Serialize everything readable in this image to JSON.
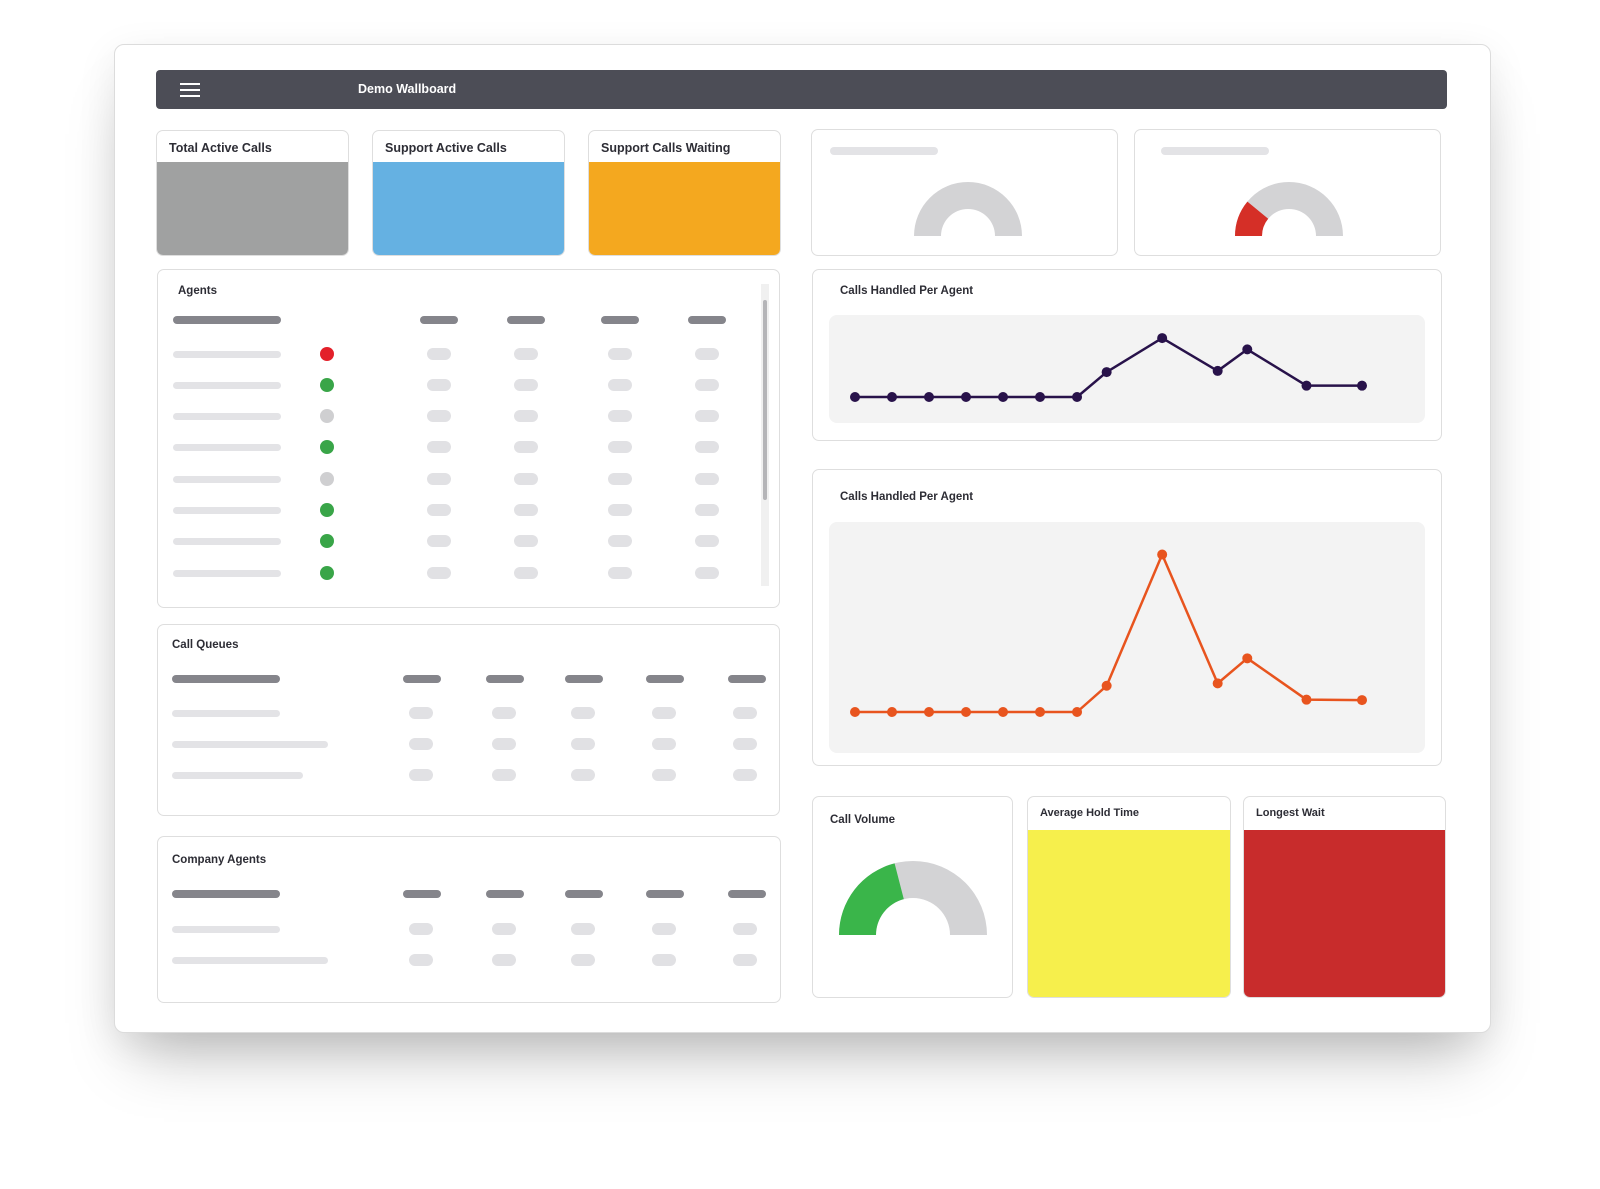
{
  "header": {
    "title": "Demo Wallboard",
    "menu_icon": "hamburger-icon"
  },
  "stats": [
    {
      "label": "Total Active Calls",
      "color": "#a0a1a1"
    },
    {
      "label": "Support Active Calls",
      "color": "#65b1e2"
    },
    {
      "label": "Support Calls Waiting",
      "color": "#f4a81f"
    }
  ],
  "top_gauges": [
    {
      "value_fraction": 0.0,
      "fill_color": "#d3d3d5",
      "track_color": "#d3d3d5"
    },
    {
      "value_fraction": 0.22,
      "fill_color": "#d52f27",
      "track_color": "#d3d3d5"
    }
  ],
  "agents": {
    "title": "Agents",
    "status_colors": [
      "#e3202a",
      "#39a548",
      "#cfcfd1",
      "#39a548",
      "#cfcfd1",
      "#39a548",
      "#39a548",
      "#39a548"
    ]
  },
  "call_queues": {
    "title": "Call Queues"
  },
  "company_agents": {
    "title": "Company Agents"
  },
  "chart_data": [
    {
      "type": "line",
      "title": "Calls Handled Per Agent",
      "color": "#28124a",
      "values": [
        0,
        0,
        0,
        0,
        0,
        0,
        0,
        2.2,
        5.2,
        2.3,
        4.2,
        1,
        1
      ],
      "ylim": [
        0,
        6
      ]
    },
    {
      "type": "line",
      "title": "Calls Handled Per Agent",
      "color": "#e8541e",
      "values": [
        0,
        0,
        0,
        0,
        0,
        0,
        0,
        2.2,
        13.2,
        2.4,
        4.5,
        1.033,
        1
      ],
      "ylim": [
        0,
        14
      ]
    }
  ],
  "call_volume": {
    "title": "Call Volume",
    "value_fraction": 0.42,
    "fill_color": "#3ab54a",
    "track_color": "#d3d3d5"
  },
  "avg_hold": {
    "label": "Average Hold Time",
    "color": "#f6ef4c"
  },
  "longest_wait": {
    "label": "Longest Wait",
    "color": "#c82c2c"
  }
}
